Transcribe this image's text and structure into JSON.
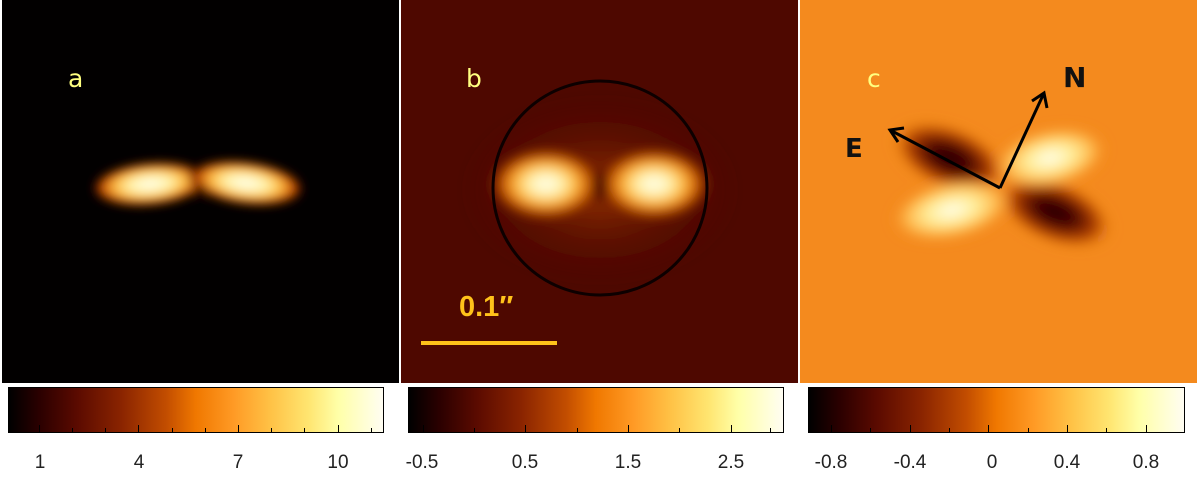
{
  "panels": [
    {
      "label": "a"
    },
    {
      "label": "b",
      "scale_bar_label": "0.1″"
    },
    {
      "label": "c",
      "compass": {
        "north": "N",
        "east": "E"
      }
    }
  ],
  "colorbars": [
    {
      "ticks": [
        "1",
        "4",
        "7",
        "10"
      ],
      "range": [
        0,
        11.8
      ]
    },
    {
      "ticks": [
        "-0.5",
        "0.5",
        "1.5",
        "2.5"
      ],
      "range": [
        -0.65,
        3.0
      ]
    },
    {
      "ticks": [
        "-0.8",
        "-0.4",
        "0",
        "0.4",
        "0.8"
      ],
      "range": [
        -0.95,
        0.95
      ]
    }
  ],
  "colors": {
    "panel_a_background": "#020000",
    "panel_b_background": "#4e0800",
    "panel_c_background": "#f48a1e",
    "label_color": "#ffff80",
    "scale_bar_color": "#ffc21a",
    "colormap": [
      "#000000",
      "#5a0a00",
      "#c24d00",
      "#ff9a25",
      "#ffe570",
      "#fffdf2"
    ]
  }
}
